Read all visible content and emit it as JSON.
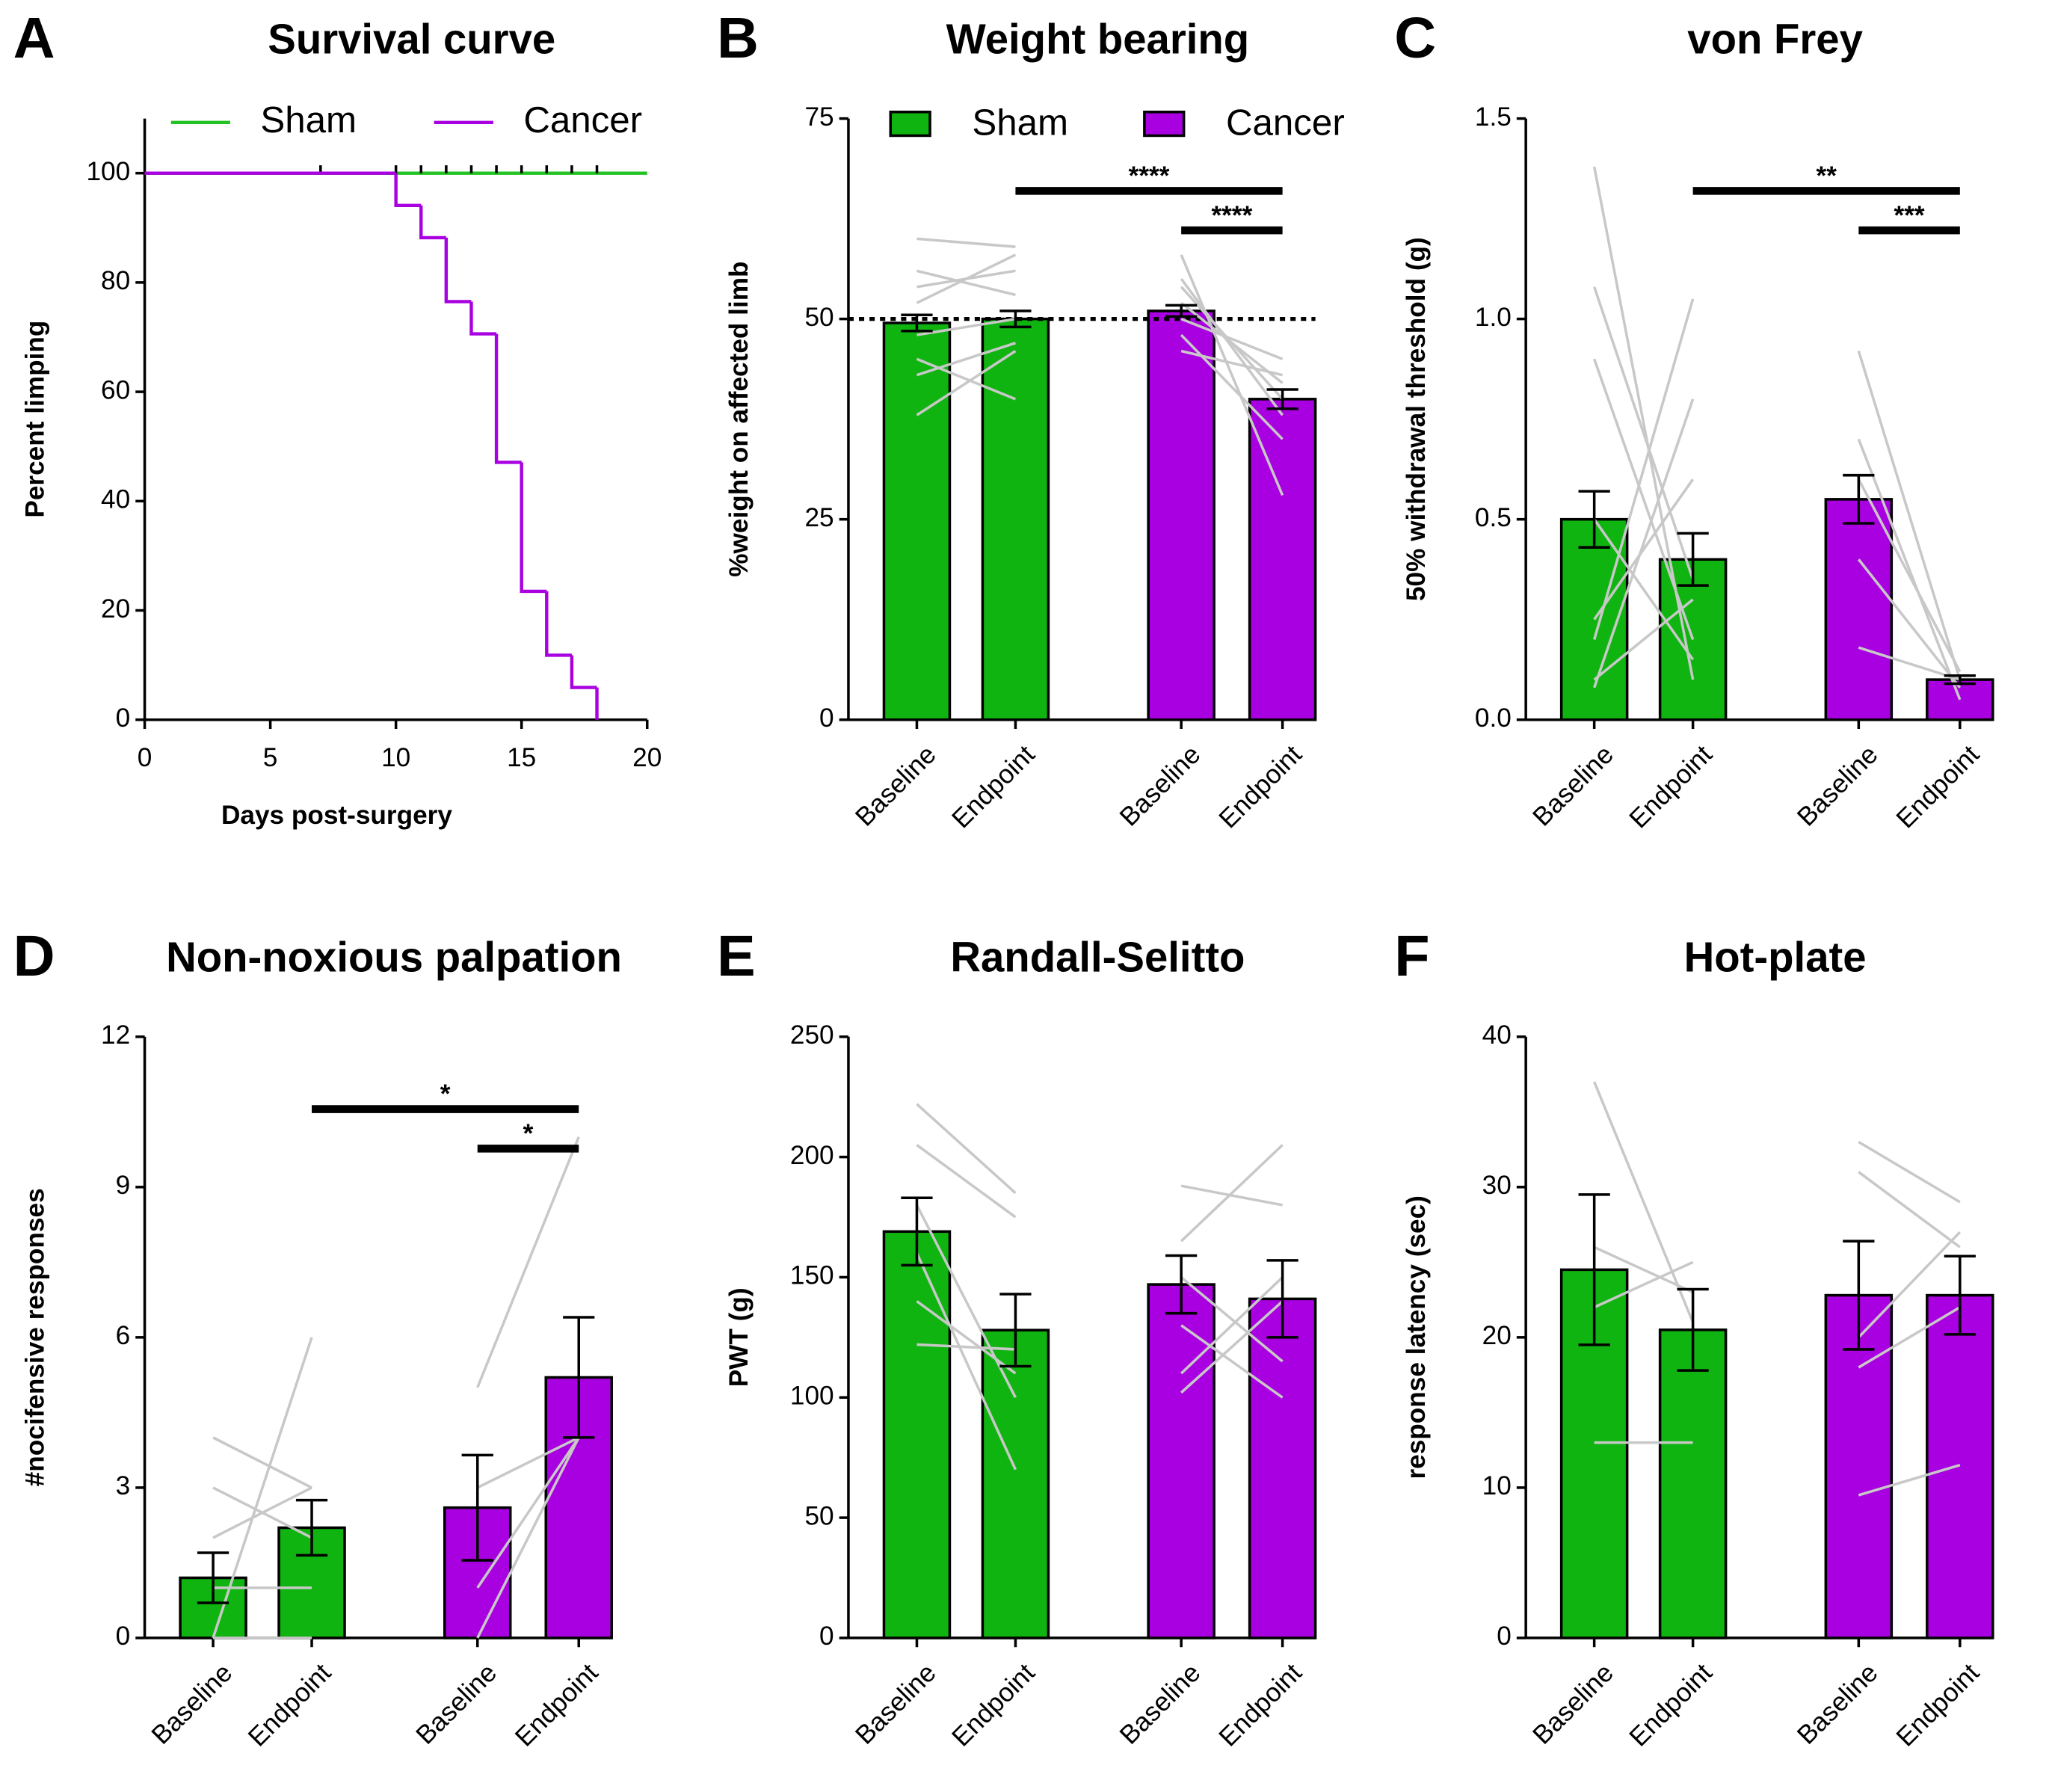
{
  "chart_data": [
    {
      "type": "survival",
      "panel": "A",
      "title": "Survival curve",
      "x_label": "Days post-surgery",
      "y_label": "Percent limping",
      "xlim": [
        0,
        20
      ],
      "xticks": [
        0,
        5,
        10,
        15,
        20
      ],
      "ylim": [
        0,
        110
      ],
      "yticks": [
        0,
        20,
        40,
        60,
        80,
        100
      ],
      "legend": "top",
      "series": [
        {
          "name": "Sham",
          "color": "#22c322",
          "x": [
            0,
            20
          ],
          "values": [
            100,
            100
          ],
          "censored": [
            7,
            10,
            11,
            12,
            13,
            14,
            15,
            16,
            17,
            18
          ]
        },
        {
          "name": "Cancer",
          "color": "#a800e0",
          "x": [
            0,
            10,
            11,
            12,
            13,
            14,
            15,
            16,
            17,
            18
          ],
          "values": [
            100,
            94.1,
            88.2,
            76.5,
            70.6,
            47.1,
            23.5,
            11.8,
            5.9,
            0
          ]
        }
      ]
    },
    {
      "type": "bar",
      "panel": "B",
      "title": "Weight bearing",
      "y_label": "%weight on affected limb",
      "ylim": [
        0,
        75
      ],
      "yticks": [
        0,
        25,
        50,
        75
      ],
      "legend": "top",
      "reference_line": 50,
      "categories": [
        "Baseline",
        "Endpoint"
      ],
      "series": [
        {
          "name": "Sham",
          "color": "#10b410",
          "values": [
            49.5,
            50
          ],
          "errors": [
            1,
            1
          ],
          "subjects": [
            [
              38,
              46
            ],
            [
              45,
              40
            ],
            [
              52,
              58
            ],
            [
              56,
              53
            ],
            [
              60,
              59
            ],
            [
              48,
              50
            ],
            [
              54,
              56
            ],
            [
              43,
              47
            ]
          ]
        },
        {
          "name": "Cancer",
          "color": "#a800e0",
          "values": [
            51,
            40
          ],
          "errors": [
            0.7,
            1.2
          ],
          "subjects": [
            [
              58,
              28
            ],
            [
              55,
              38
            ],
            [
              52,
              42
            ],
            [
              50,
              45
            ],
            [
              48,
              35
            ],
            [
              54,
              40
            ],
            [
              46,
              43
            ]
          ]
        }
      ],
      "comparisons": [
        {
          "label": "****",
          "between": [
            1,
            3
          ]
        },
        {
          "label": "****",
          "between": [
            2,
            3
          ]
        }
      ]
    },
    {
      "type": "bar",
      "panel": "C",
      "title": "von Frey",
      "y_label": "50% withdrawal threshold (g)",
      "ylim": [
        0,
        1.5
      ],
      "yticks": [
        {
          "value": 0,
          "label": "0.0"
        },
        0.5,
        {
          "value": 1,
          "label": "1.0"
        },
        {
          "value": 1.5,
          "label": "1.5"
        }
      ],
      "categories": [
        "Baseline",
        "Endpoint"
      ],
      "series": [
        {
          "name": "Sham",
          "color": "#10b410",
          "values": [
            0.5,
            0.4
          ],
          "errors": [
            0.07,
            0.065
          ],
          "subjects": [
            [
              1.38,
              0.1
            ],
            [
              1.08,
              0.35
            ],
            [
              0.9,
              0.2
            ],
            [
              0.2,
              1.05
            ],
            [
              0.08,
              0.8
            ],
            [
              0.5,
              0.15
            ],
            [
              0.25,
              0.6
            ],
            [
              0.1,
              0.3
            ]
          ]
        },
        {
          "name": "Cancer",
          "color": "#a800e0",
          "values": [
            0.55,
            0.1
          ],
          "errors": [
            0.06,
            0.01
          ],
          "subjects": [
            [
              0.92,
              0.1
            ],
            [
              0.7,
              0.05
            ],
            [
              0.6,
              0.12
            ],
            [
              0.4,
              0.08
            ],
            [
              0.18,
              0.1
            ]
          ]
        }
      ],
      "comparisons": [
        {
          "label": "**",
          "between": [
            1,
            3
          ]
        },
        {
          "label": "***",
          "between": [
            2,
            3
          ]
        }
      ]
    },
    {
      "type": "bar",
      "panel": "D",
      "title": "Non-noxious palpation",
      "y_label": "#nocifensive responses",
      "ylim": [
        0,
        12
      ],
      "yticks": [
        0,
        3,
        6,
        9,
        12
      ],
      "categories": [
        "Baseline",
        "Endpoint"
      ],
      "series": [
        {
          "name": "Sham",
          "color": "#10b410",
          "values": [
            1.2,
            2.2
          ],
          "errors": [
            0.5,
            0.55
          ],
          "subjects": [
            [
              0,
              6
            ],
            [
              4,
              3
            ],
            [
              3,
              2
            ],
            [
              2,
              3
            ],
            [
              1,
              1
            ],
            [
              0,
              0
            ]
          ]
        },
        {
          "name": "Cancer",
          "color": "#a800e0",
          "values": [
            2.6,
            5.2
          ],
          "errors": [
            1.05,
            1.2
          ],
          "subjects": [
            [
              5,
              10
            ],
            [
              3,
              4
            ],
            [
              1,
              4
            ],
            [
              0,
              4
            ]
          ]
        }
      ],
      "comparisons": [
        {
          "label": "*",
          "between": [
            1,
            3
          ]
        },
        {
          "label": "*",
          "between": [
            2,
            3
          ]
        }
      ]
    },
    {
      "type": "bar",
      "panel": "E",
      "title": "Randall-Selitto",
      "y_label": "PWT (g)",
      "ylim": [
        0,
        250
      ],
      "yticks": [
        0,
        50,
        100,
        150,
        200,
        250
      ],
      "categories": [
        "Baseline",
        "Endpoint"
      ],
      "series": [
        {
          "name": "Sham",
          "color": "#10b410",
          "values": [
            169,
            128
          ],
          "errors": [
            14,
            15
          ],
          "subjects": [
            [
              222,
              185
            ],
            [
              205,
              175
            ],
            [
              180,
              100
            ],
            [
              160,
              70
            ],
            [
              140,
              110
            ],
            [
              122,
              120
            ]
          ]
        },
        {
          "name": "Cancer",
          "color": "#a800e0",
          "values": [
            147,
            141
          ],
          "errors": [
            12,
            16
          ],
          "subjects": [
            [
              188,
              180
            ],
            [
              165,
              205
            ],
            [
              150,
              115
            ],
            [
              130,
              100
            ],
            [
              110,
              150
            ],
            [
              102,
              140
            ]
          ]
        }
      ]
    },
    {
      "type": "bar",
      "panel": "F",
      "title": "Hot-plate",
      "y_label": "response latency (sec)",
      "ylim": [
        0,
        40
      ],
      "yticks": [
        0,
        10,
        20,
        30,
        40
      ],
      "categories": [
        "Baseline",
        "Endpoint"
      ],
      "series": [
        {
          "name": "Sham",
          "color": "#10b410",
          "values": [
            24.5,
            20.5
          ],
          "errors": [
            5,
            2.7
          ],
          "subjects": [
            [
              37,
              21
            ],
            [
              26,
              23
            ],
            [
              22,
              25
            ],
            [
              13,
              13
            ]
          ]
        },
        {
          "name": "Cancer",
          "color": "#a800e0",
          "values": [
            22.8,
            22.8
          ],
          "errors": [
            3.6,
            2.6
          ],
          "subjects": [
            [
              33,
              29
            ],
            [
              31,
              26
            ],
            [
              20,
              27
            ],
            [
              18,
              22
            ],
            [
              9.5,
              11.5
            ]
          ]
        }
      ]
    }
  ]
}
